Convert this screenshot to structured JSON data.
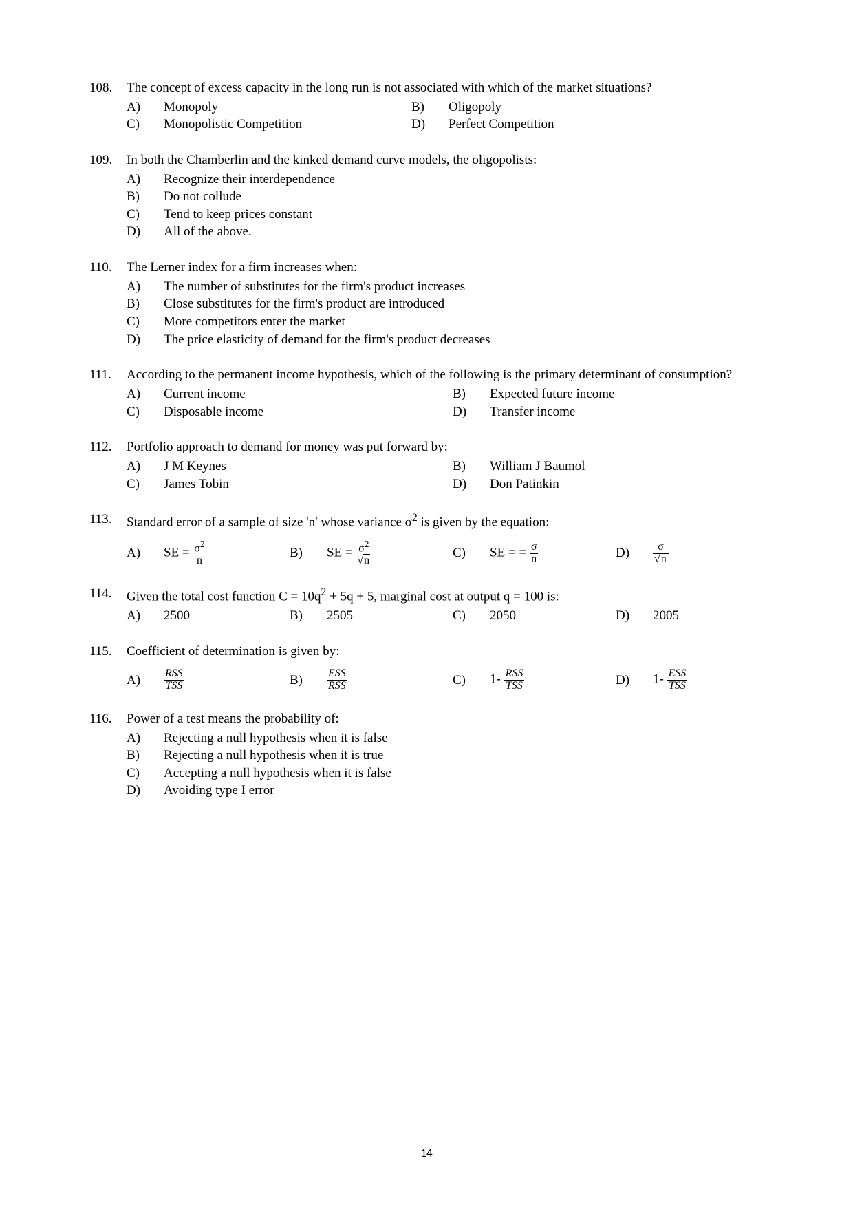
{
  "page_number": "14",
  "questions": [
    {
      "num": "108.",
      "stem": "The concept of excess capacity in the long run is not associated with which of the market situations?",
      "layout": "2col-shift",
      "options": [
        {
          "label": "A)",
          "text": "Monopoly"
        },
        {
          "label": "B)",
          "text": "Oligopoly"
        },
        {
          "label": "C)",
          "text": "Monopolistic Competition"
        },
        {
          "label": "D)",
          "text": "Perfect Competition"
        }
      ]
    },
    {
      "num": "109.",
      "stem": "In both the Chamberlin and the kinked demand curve models, the oligopolists:",
      "layout": "1col",
      "options": [
        {
          "label": "A)",
          "text": "Recognize their interdependence"
        },
        {
          "label": "B)",
          "text": "Do not collude"
        },
        {
          "label": "C)",
          "text": "Tend to keep prices constant"
        },
        {
          "label": "D)",
          "text": "All of the above."
        }
      ]
    },
    {
      "num": "110.",
      "stem": "The Lerner index for a firm increases when:",
      "layout": "1col",
      "options": [
        {
          "label": "A)",
          "text": "The number of substitutes for the firm's product increases"
        },
        {
          "label": "B)",
          "text": "Close substitutes for the firm's product are introduced"
        },
        {
          "label": "C)",
          "text": "More competitors enter the market"
        },
        {
          "label": "D)",
          "text": "The price elasticity of demand for the firm's product decreases"
        }
      ]
    },
    {
      "num": "111.",
      "stem": "According to the permanent income hypothesis, which of the following is the primary determinant of consumption?",
      "layout": "2col",
      "options": [
        {
          "label": "A)",
          "text": "Current income"
        },
        {
          "label": "B)",
          "text": "Expected future income"
        },
        {
          "label": "C)",
          "text": "Disposable income"
        },
        {
          "label": "D)",
          "text": "Transfer income"
        }
      ]
    },
    {
      "num": "112.",
      "stem": "Portfolio approach to demand for money was put forward by:",
      "layout": "2col",
      "options": [
        {
          "label": "A)",
          "text": "J M Keynes"
        },
        {
          "label": "B)",
          "text": "William J Baumol"
        },
        {
          "label": "C)",
          "text": "James Tobin"
        },
        {
          "label": "D)",
          "text": "Don Patinkin"
        }
      ]
    },
    {
      "num": "113.",
      "stem_html": "Standard error of a sample of size 'n' whose variance σ<sup>2</sup> is given by the equation:",
      "layout": "math4",
      "math_options": [
        {
          "label": "A)",
          "prefix": "SE = ",
          "num": "σ<sup>2</sup>",
          "den": "n"
        },
        {
          "label": "B)",
          "prefix": "SE = ",
          "num": "σ<sup>2</sup>",
          "den": "√<span style='border-top:1px solid #000;padding:0 1px'>n</span>"
        },
        {
          "label": "C)",
          "prefix": "SE = = ",
          "num": "σ",
          "den": "n"
        },
        {
          "label": "D)",
          "prefix": "",
          "num": "σ",
          "den": "√<span style='border-top:1px solid #000;padding:0 1px'>n</span>"
        }
      ]
    },
    {
      "num": "114.",
      "stem_html": "Given the total cost function C = 10q<sup>2</sup> + 5q + 5, marginal cost at output q = 100 is:",
      "layout": "4col",
      "options": [
        {
          "label": "A)",
          "text": "2500"
        },
        {
          "label": "B)",
          "text": "2505"
        },
        {
          "label": "C)",
          "text": "2050"
        },
        {
          "label": "D)",
          "text": "2005"
        }
      ]
    },
    {
      "num": "115.",
      "stem": "Coefficient of determination is given by:",
      "layout": "math4",
      "math_options": [
        {
          "label": "A)",
          "prefix": "",
          "num": "RSS",
          "den": "TSS",
          "italic": true
        },
        {
          "label": "B)",
          "prefix": "",
          "num": "ESS",
          "den": "RSS",
          "italic": true
        },
        {
          "label": "C)",
          "prefix": "1- ",
          "num": "RSS",
          "den": "TSS",
          "italic": true
        },
        {
          "label": "D)",
          "prefix": "1- ",
          "num": "ESS",
          "den": "TSS",
          "italic": true
        }
      ]
    },
    {
      "num": "116.",
      "stem": "Power of a test means the probability of:",
      "layout": "1col",
      "options": [
        {
          "label": "A)",
          "text": "Rejecting a null hypothesis when it is false"
        },
        {
          "label": "B)",
          "text": "Rejecting a null hypothesis when it is true"
        },
        {
          "label": "C)",
          "text": "Accepting a null hypothesis when it is false"
        },
        {
          "label": "D)",
          "text": "Avoiding type I error"
        }
      ]
    }
  ]
}
